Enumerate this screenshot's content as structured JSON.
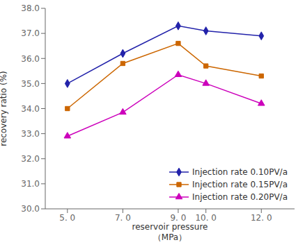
{
  "chart_data": {
    "type": "line",
    "xlabel": "reservoir pressure\n（MPa）",
    "ylabel": "recovery ratio (%)",
    "x": [
      5.0,
      7.0,
      9.0,
      10.0,
      12.0
    ],
    "series": [
      {
        "name": "Injection rate 0.10PV/a",
        "color": "#2222aa",
        "marker": "diamond",
        "values": [
          35.0,
          36.2,
          37.3,
          37.1,
          36.9
        ]
      },
      {
        "name": "Injection rate 0.15PV/a",
        "color": "#cc6600",
        "marker": "square",
        "values": [
          34.0,
          35.8,
          36.6,
          35.7,
          35.3
        ]
      },
      {
        "name": "Injection rate 0.20PV/a",
        "color": "#cc00bb",
        "marker": "triangle",
        "values": [
          32.9,
          33.85,
          35.35,
          35.0,
          34.2
        ]
      }
    ],
    "xlim": [
      4.2,
      13.2
    ],
    "ylim": [
      30.0,
      38.0
    ],
    "xticks": [
      {
        "value": 5.0,
        "label": "5. 0"
      },
      {
        "value": 7.0,
        "label": "7. 0"
      },
      {
        "value": 9.0,
        "label": "9. 0"
      },
      {
        "value": 10.0,
        "label": "10. 0"
      },
      {
        "value": 12.0,
        "label": "12. 0"
      }
    ],
    "yticks": [
      {
        "value": 30.0,
        "label": "30.0"
      },
      {
        "value": 31.0,
        "label": "31.0"
      },
      {
        "value": 32.0,
        "label": "32.0"
      },
      {
        "value": 33.0,
        "label": "33.0"
      },
      {
        "value": 34.0,
        "label": "34.0"
      },
      {
        "value": 35.0,
        "label": "35.0"
      },
      {
        "value": 36.0,
        "label": "36.0"
      },
      {
        "value": 37.0,
        "label": "37.0"
      },
      {
        "value": 38.0,
        "label": "38.0"
      }
    ],
    "grid": false,
    "legend": "lower right"
  }
}
